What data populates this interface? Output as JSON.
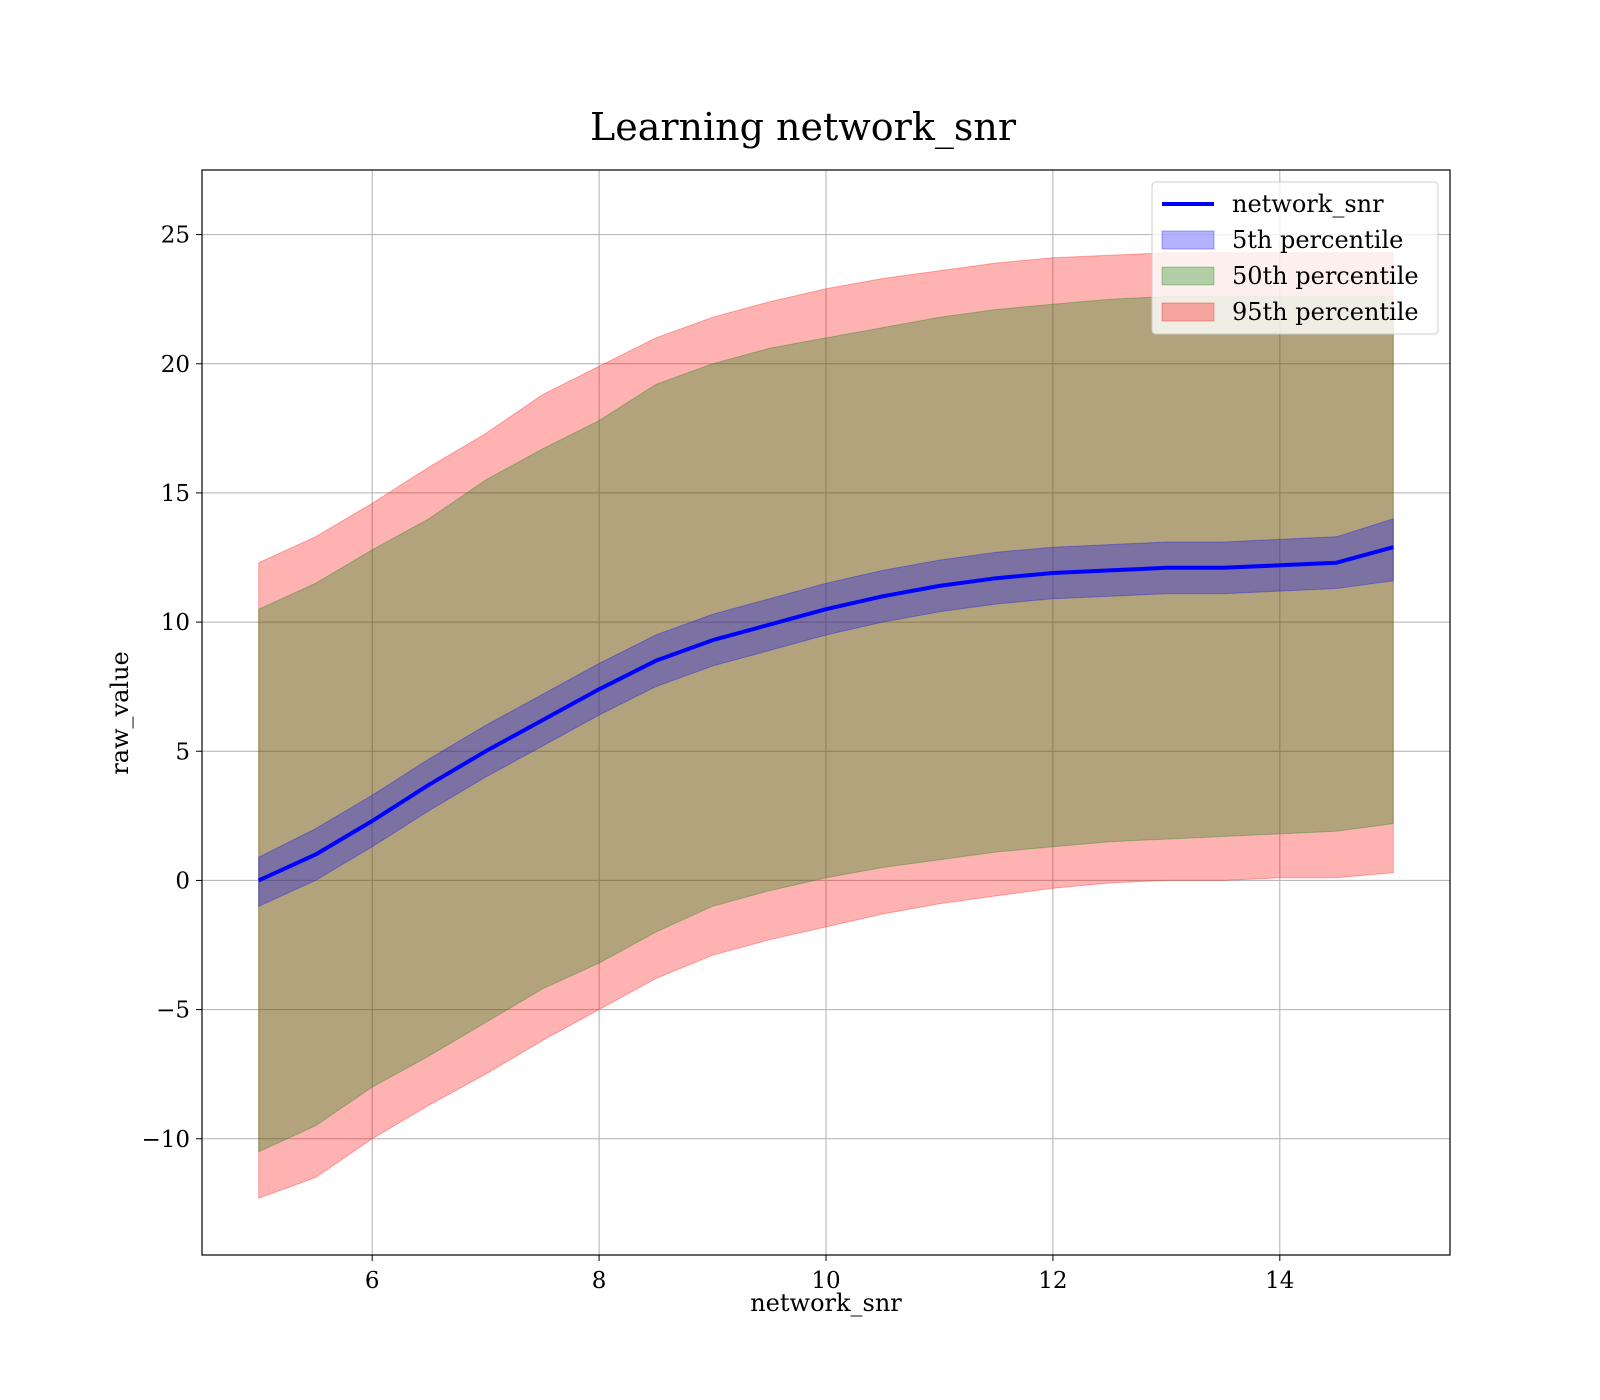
{
  "chart_data": {
    "type": "line",
    "title": "Learning network_snr",
    "xlabel": "network_snr",
    "ylabel": "raw_value",
    "xlim": [
      4.5,
      15.5
    ],
    "ylim": [
      -14.5,
      27.5
    ],
    "xticks": [
      6,
      8,
      10,
      12,
      14
    ],
    "yticks": [
      -10,
      -5,
      0,
      5,
      10,
      15,
      20,
      25
    ],
    "ytick_labels": [
      "−10",
      "−5",
      "0",
      "5",
      "10",
      "15",
      "20",
      "25"
    ],
    "grid": true,
    "legend_position": "top-right",
    "x": [
      5.0,
      5.5,
      6.0,
      6.5,
      7.0,
      7.5,
      8.0,
      8.5,
      9.0,
      9.5,
      10.0,
      10.5,
      11.0,
      11.5,
      12.0,
      12.5,
      13.0,
      13.5,
      14.0,
      14.5,
      15.0
    ],
    "series": [
      {
        "name": "network_snr",
        "kind": "line",
        "color": "#0000ff",
        "values": [
          0.0,
          1.0,
          2.3,
          3.7,
          5.0,
          6.2,
          7.4,
          8.5,
          9.3,
          9.9,
          10.5,
          11.0,
          11.4,
          11.7,
          11.9,
          12.0,
          12.1,
          12.1,
          12.2,
          12.3,
          12.9
        ]
      },
      {
        "name": "5th percentile",
        "kind": "band",
        "color": "#0000ff",
        "lower": [
          -1.0,
          0.0,
          1.3,
          2.7,
          4.0,
          5.2,
          6.4,
          7.5,
          8.3,
          8.9,
          9.5,
          10.0,
          10.4,
          10.7,
          10.9,
          11.0,
          11.1,
          11.1,
          11.2,
          11.3,
          11.6
        ],
        "upper": [
          0.9,
          2.0,
          3.3,
          4.7,
          6.0,
          7.2,
          8.4,
          9.5,
          10.3,
          10.9,
          11.5,
          12.0,
          12.4,
          12.7,
          12.9,
          13.0,
          13.1,
          13.1,
          13.2,
          13.3,
          14.0
        ]
      },
      {
        "name": "50th percentile",
        "kind": "band",
        "color": "#008000",
        "lower": [
          -10.5,
          -9.5,
          -8.0,
          -6.8,
          -5.5,
          -4.2,
          -3.2,
          -2.0,
          -1.0,
          -0.4,
          0.1,
          0.5,
          0.8,
          1.1,
          1.3,
          1.5,
          1.6,
          1.7,
          1.8,
          1.9,
          2.2
        ],
        "upper": [
          10.5,
          11.5,
          12.8,
          14.0,
          15.5,
          16.7,
          17.8,
          19.2,
          20.0,
          20.6,
          21.0,
          21.4,
          21.8,
          22.1,
          22.3,
          22.5,
          22.6,
          22.6,
          22.6,
          22.6,
          22.6
        ]
      },
      {
        "name": "95th percentile",
        "kind": "band",
        "color": "#ff0000",
        "lower": [
          -12.3,
          -11.5,
          -10.0,
          -8.7,
          -7.5,
          -6.2,
          -5.0,
          -3.8,
          -2.9,
          -2.3,
          -1.8,
          -1.3,
          -0.9,
          -0.6,
          -0.3,
          -0.1,
          0.0,
          0.0,
          0.1,
          0.1,
          0.3
        ],
        "upper": [
          12.3,
          13.3,
          14.6,
          16.0,
          17.3,
          18.8,
          19.9,
          21.0,
          21.8,
          22.4,
          22.9,
          23.3,
          23.6,
          23.9,
          24.1,
          24.2,
          24.3,
          24.3,
          24.3,
          24.3,
          24.3
        ]
      }
    ]
  }
}
